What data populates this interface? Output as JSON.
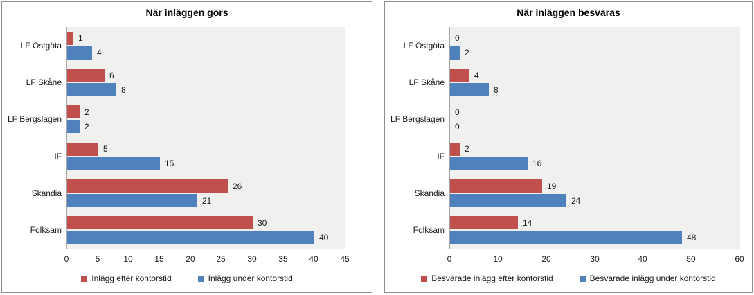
{
  "colors": {
    "series_red": "#C0504D",
    "series_blue": "#4F81BD",
    "plot_background": "#F0F0EE",
    "axis_line": "#A6A6A6",
    "panel_border": "#8E8E8E",
    "text": "#1A1A1A"
  },
  "chart_data": [
    {
      "type": "bar",
      "orientation": "horizontal",
      "title": "När inläggen görs",
      "categories": [
        "LF Östgöta",
        "LF Skåne",
        "LF Bergslagen",
        "IF",
        "Skandia",
        "Folksam"
      ],
      "series": [
        {
          "name": "Inlägg efter kontorstid",
          "color": "#C0504D",
          "values": [
            1,
            6,
            2,
            5,
            26,
            30
          ]
        },
        {
          "name": "Inlägg under kontorstid",
          "color": "#4F81BD",
          "values": [
            4,
            8,
            2,
            15,
            21,
            40
          ]
        }
      ],
      "xlim": [
        0,
        45
      ],
      "xticks": [
        0,
        5,
        10,
        15,
        20,
        25,
        30,
        35,
        40,
        45
      ],
      "data_labels": true,
      "grid": false,
      "legend_position": "bottom"
    },
    {
      "type": "bar",
      "orientation": "horizontal",
      "title": "När inläggen besvaras",
      "categories": [
        "LF Östgöta",
        "LF Skåne",
        "LF Bergslagen",
        "IF",
        "Skandia",
        "Folksam"
      ],
      "series": [
        {
          "name": "Besvarade inlägg efter kontorstid",
          "color": "#C0504D",
          "values": [
            0,
            4,
            0,
            2,
            19,
            14
          ]
        },
        {
          "name": "Besvarade inlägg under kontorstid",
          "color": "#4F81BD",
          "values": [
            2,
            8,
            0,
            16,
            24,
            48
          ]
        }
      ],
      "xlim": [
        0,
        60
      ],
      "xticks": [
        0,
        10,
        20,
        30,
        40,
        50,
        60
      ],
      "data_labels": true,
      "grid": false,
      "legend_position": "bottom"
    }
  ]
}
